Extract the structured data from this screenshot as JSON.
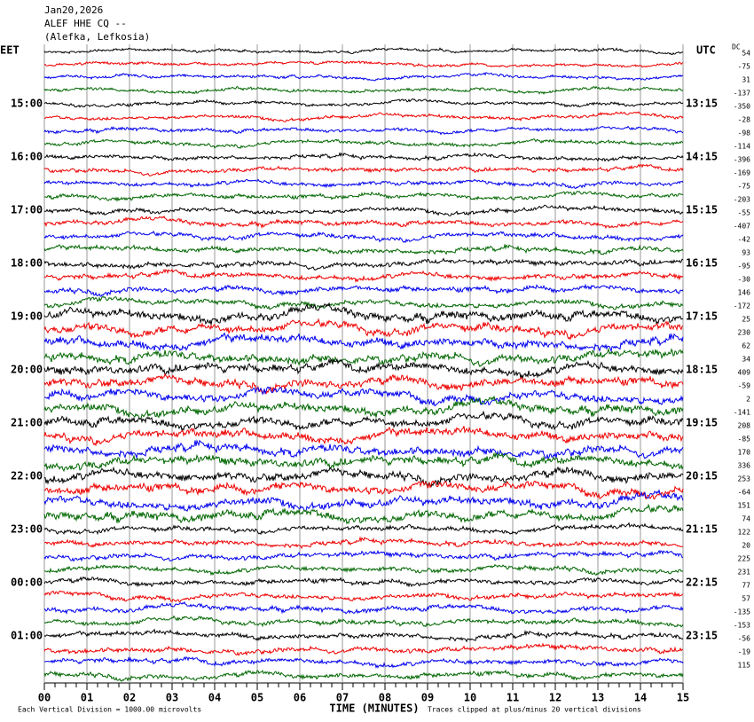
{
  "header": {
    "date": "Jan20,2026",
    "station": "ALEF HHE CQ --",
    "location": "(Alefka, Lefkosia)"
  },
  "left_zone": "EET",
  "right_zone": "UTC",
  "dc_label": "DC",
  "left_times": [
    "15:00",
    "16:00",
    "17:00",
    "18:00",
    "19:00",
    "20:00",
    "21:00",
    "22:00",
    "23:00",
    "00:00",
    "01:00"
  ],
  "right_times": [
    "13:15",
    "14:15",
    "15:15",
    "16:15",
    "17:15",
    "18:15",
    "19:15",
    "20:15",
    "21:15",
    "22:15",
    "23:15"
  ],
  "dc_values": [
    54,
    -75,
    31,
    -137,
    -350,
    -28,
    -98,
    -114,
    -396,
    -169,
    -75,
    -203,
    -55,
    -407,
    -42,
    93,
    -95,
    -30,
    146,
    -172,
    25,
    230,
    62,
    34,
    409,
    -59,
    2,
    -141,
    208,
    -85,
    170,
    336,
    253,
    -64,
    151,
    74,
    122,
    20,
    225,
    231,
    77,
    57,
    -135,
    -153,
    -56,
    -19,
    115
  ],
  "x_ticks": [
    "00",
    "01",
    "02",
    "03",
    "04",
    "05",
    "06",
    "07",
    "08",
    "09",
    "10",
    "11",
    "12",
    "13",
    "14",
    "15"
  ],
  "footer": {
    "scale": "Each Vertical Division = 1000.00 microvolts",
    "axis_title": "TIME (MINUTES)",
    "clip": "Traces clipped at plus/minus 20 vertical divisions"
  }
}
